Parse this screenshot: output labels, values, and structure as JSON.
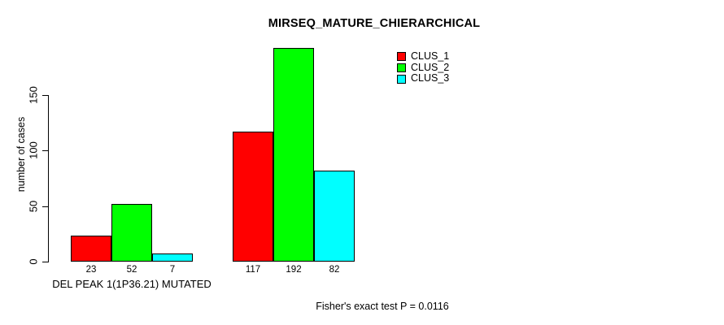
{
  "chart_data": {
    "type": "bar",
    "title": "MIRSEQ_MATURE_CHIERARCHICAL",
    "xlabel": "",
    "ylabel": "number of cases",
    "categories": [
      "DEL PEAK 1(1P36.21) MUTATED",
      ""
    ],
    "series": [
      {
        "name": "CLUS_1",
        "color": "#ff0000",
        "values": [
          23,
          117
        ]
      },
      {
        "name": "CLUS_2",
        "color": "#00ff00",
        "values": [
          52,
          192
        ]
      },
      {
        "name": "CLUS_3",
        "color": "#00ffff",
        "values": [
          7,
          82
        ]
      }
    ],
    "yticks": [
      0,
      50,
      100,
      150
    ],
    "ylim": [
      0,
      205
    ],
    "grid": false,
    "legend_position": "top-right",
    "bar_value_labels_shown": true,
    "annotation": "Fisher's exact test P = 0.0116"
  },
  "colors": {
    "background": "#ffffff",
    "axis": "#000000",
    "text": "#000000",
    "clus_1": "#ff0000",
    "clus_2": "#00ff00",
    "clus_3": "#00ffff"
  }
}
